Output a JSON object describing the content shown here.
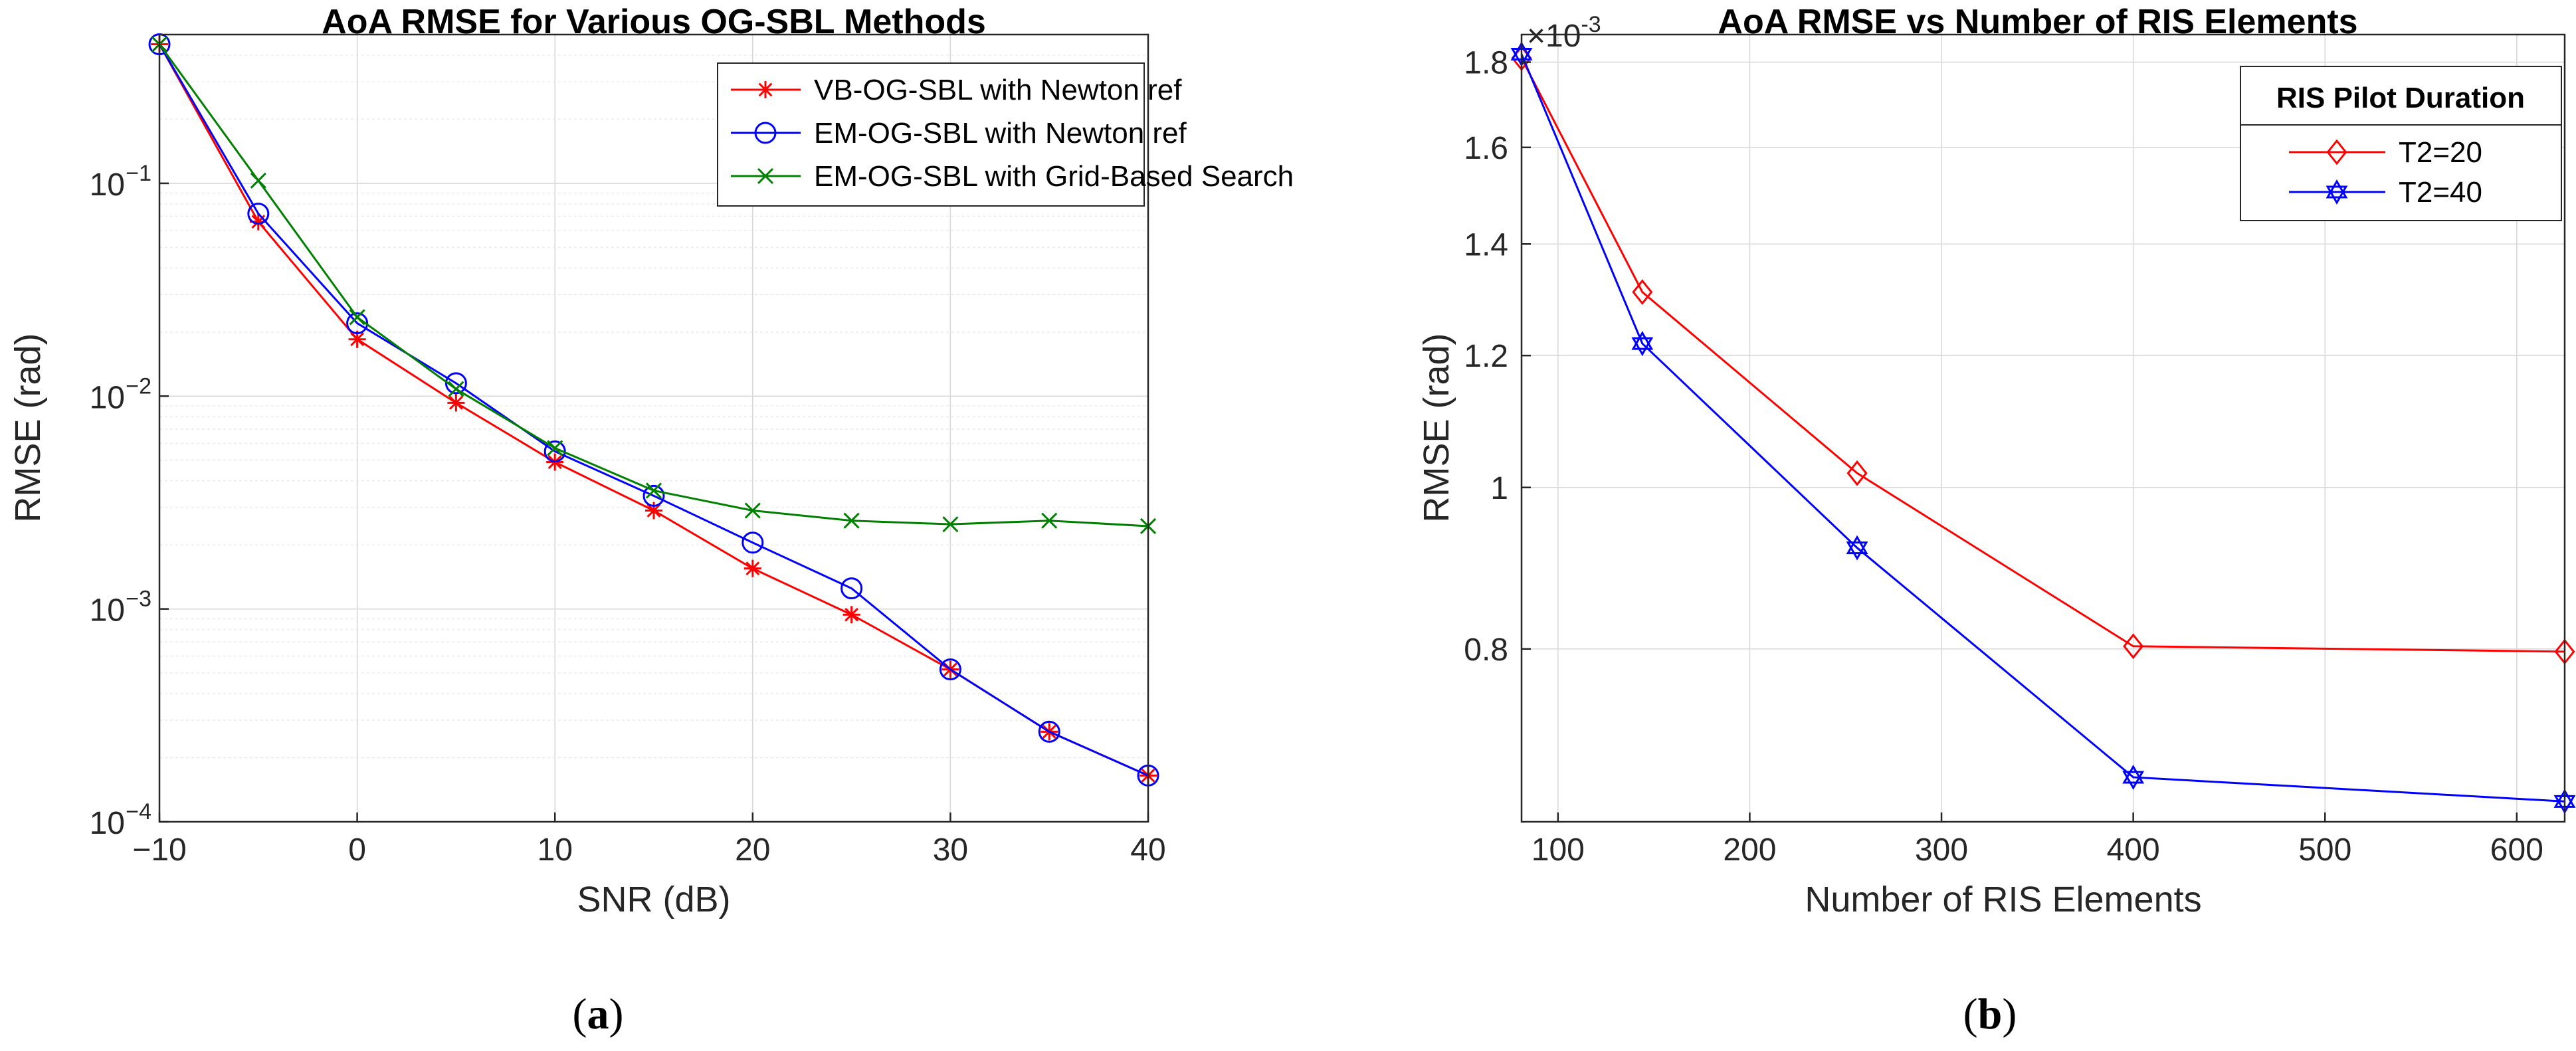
{
  "chart_data": [
    {
      "type": "line",
      "panel_label": "a",
      "title": "AoA RMSE for Various OG-SBL Methods",
      "xlabel": "SNR (dB)",
      "ylabel": "RMSE (rad)",
      "xscale": "linear",
      "yscale": "log",
      "xlim": [
        -10,
        40
      ],
      "ylim": [
        0.0001,
        0.5
      ],
      "xticks": [
        -10,
        0,
        10,
        20,
        30,
        40
      ],
      "xtick_labels": [
        "−10",
        "0",
        "10",
        "20",
        "30",
        "40"
      ],
      "ytick_labels": [
        {
          "base": "10",
          "exp": "−4",
          "value": 0.0001
        },
        {
          "base": "10",
          "exp": "−3",
          "value": 0.001
        },
        {
          "base": "10",
          "exp": "−2",
          "value": 0.01
        },
        {
          "base": "10",
          "exp": "−1",
          "value": 0.1
        }
      ],
      "grid": true,
      "legend_position": "top-right",
      "x": [
        -10,
        -5,
        0,
        5,
        10,
        15,
        20,
        25,
        30,
        35,
        40
      ],
      "series": [
        {
          "name": "VB-OG-SBL with Newton ref",
          "color": "#ff0000",
          "marker": "asterisk",
          "values": [
            0.45,
            0.066,
            0.0185,
            0.0093,
            0.0049,
            0.0029,
            0.00155,
            0.00094,
            0.00052,
            0.000265,
            0.000165
          ]
        },
        {
          "name": "EM-OG-SBL with Newton ref",
          "color": "#0000ff",
          "marker": "circle",
          "values": [
            0.45,
            0.072,
            0.022,
            0.0115,
            0.0055,
            0.0034,
            0.00205,
            0.00125,
            0.00052,
            0.000265,
            0.000165
          ]
        },
        {
          "name": "EM-OG-SBL with Grid-Based Search",
          "color": "#008000",
          "marker": "x",
          "values": [
            0.45,
            0.103,
            0.0235,
            0.0108,
            0.0057,
            0.0036,
            0.0029,
            0.0026,
            0.0025,
            0.0026,
            0.00245
          ]
        }
      ]
    },
    {
      "type": "line",
      "panel_label": "b",
      "title": "AoA RMSE vs Number of RIS Elements",
      "xlabel": "Number of RIS Elements",
      "ylabel": "RMSE (rad)",
      "y_multiplier_base": "10",
      "y_multiplier_exp": "-3",
      "xscale": "linear",
      "yscale": "log",
      "xlim": [
        81,
        625
      ],
      "ylim": [
        0.00063,
        0.00187
      ],
      "xticks": [
        100,
        200,
        300,
        400,
        500,
        600
      ],
      "xtick_labels": [
        "100",
        "200",
        "300",
        "400",
        "500",
        "600"
      ],
      "yticks": [
        0.0008,
        0.001,
        0.0012,
        0.0014,
        0.0016,
        0.0018
      ],
      "ytick_labels": [
        "0.8",
        "1",
        "1.2",
        "1.4",
        "1.6",
        "1.8"
      ],
      "grid": true,
      "legend_position": "top-right",
      "legend_title": "RIS Pilot Duration",
      "x": [
        81,
        144,
        256,
        400,
        625
      ],
      "series": [
        {
          "name": "T2=20",
          "color": "#ff0000",
          "marker": "diamond",
          "values": [
            0.00181,
            0.00131,
            0.00102,
            0.000803,
            0.000797
          ]
        },
        {
          "name": "T2=40",
          "color": "#0000ff",
          "marker": "hexagram",
          "values": [
            0.00182,
            0.00122,
            0.00092,
            0.00067,
            0.000648
          ]
        }
      ]
    }
  ]
}
